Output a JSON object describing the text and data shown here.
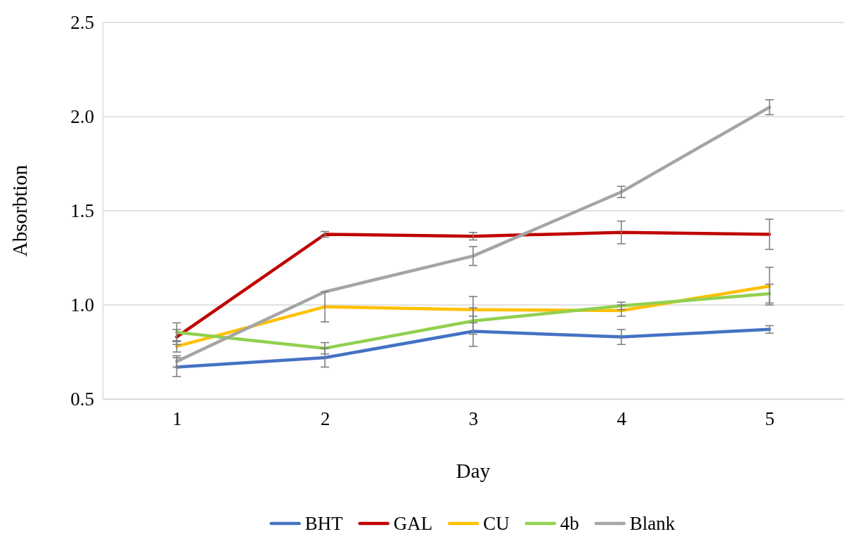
{
  "chart_data": {
    "type": "line",
    "xlabel": "Day",
    "ylabel": "Absorbtion",
    "categories": [
      "1",
      "2",
      "3",
      "4",
      "5"
    ],
    "ylim": [
      0.5,
      2.5
    ],
    "yticks": [
      {
        "value": 0.5,
        "label": "0.5"
      },
      {
        "value": 1,
        "label": "1.0"
      },
      {
        "value": 1.5,
        "label": "1.5"
      },
      {
        "value": 2,
        "label": "2.0"
      },
      {
        "value": 2.5,
        "label": "2.5"
      }
    ],
    "grid": "y",
    "legend": "bottom",
    "marker": "none",
    "line_style": "solid",
    "series": [
      {
        "name": "BHT",
        "color": "#4472c4",
        "values": [
          0.67,
          0.72,
          0.86,
          0.83,
          0.87
        ],
        "errors": [
          0.05,
          0.05,
          0.08,
          0.04,
          0.02
        ]
      },
      {
        "name": "GAL",
        "color": "#c00000",
        "values": [
          0.83,
          1.375,
          1.365,
          1.385,
          1.375
        ],
        "errors": [
          0.04,
          0.015,
          0.02,
          0.06,
          0.08
        ]
      },
      {
        "name": "CU",
        "color": "#ffc000",
        "values": [
          0.78,
          0.99,
          0.975,
          0.97,
          1.1
        ],
        "errors": [
          0.03,
          0.08,
          0.07,
          0.03,
          0.1
        ]
      },
      {
        "name": "4b",
        "color": "#92d050",
        "values": [
          0.855,
          0.77,
          0.915,
          0.995,
          1.06
        ],
        "errors": [
          0.05,
          0.03,
          0.07,
          0.02,
          0.05
        ]
      },
      {
        "name": "Blank",
        "color": "#a5a5a5",
        "values": [
          0.7,
          1.07,
          1.26,
          1.6,
          2.05
        ],
        "errors": [
          0.03,
          null,
          0.05,
          0.03,
          0.04
        ]
      }
    ]
  }
}
